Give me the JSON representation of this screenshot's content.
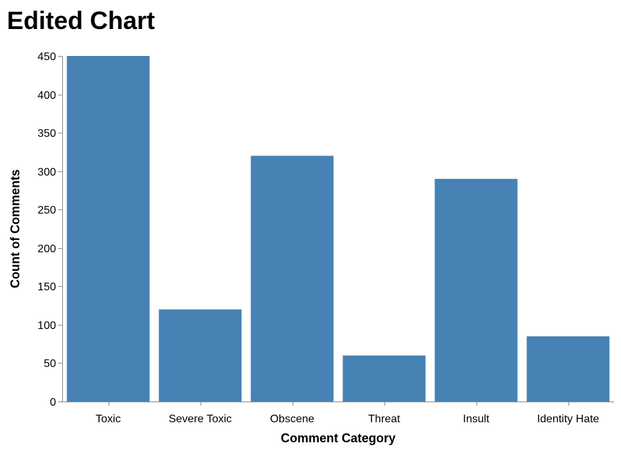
{
  "chart_data": {
    "type": "bar",
    "title": "Edited Chart",
    "xlabel": "Comment Category",
    "ylabel": "Count of Comments",
    "categories": [
      "Toxic",
      "Severe Toxic",
      "Obscene",
      "Threat",
      "Insult",
      "Identity Hate"
    ],
    "values": [
      450,
      120,
      320,
      60,
      290,
      85
    ],
    "ylim": [
      0,
      450
    ],
    "yticks": [
      0,
      50,
      100,
      150,
      200,
      250,
      300,
      350,
      400,
      450
    ],
    "grid": false,
    "bar_color": "#4682b4"
  }
}
